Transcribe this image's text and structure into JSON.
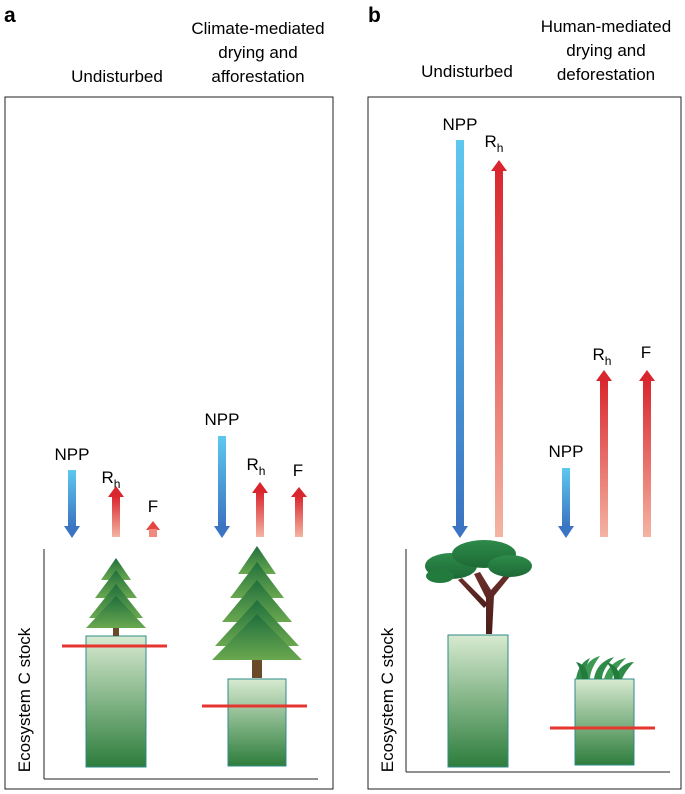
{
  "panels": [
    {
      "id": "a",
      "letter": "a",
      "columns": [
        {
          "label_lines": [
            "Undisturbed"
          ]
        },
        {
          "label_lines": [
            "Climate-mediated",
            "drying and",
            "afforestation"
          ]
        }
      ],
      "flux_labels": [
        "NPP",
        "R",
        "h",
        "F"
      ],
      "y_axis_label": "Ecosystem C stock"
    },
    {
      "id": "b",
      "letter": "b",
      "columns": [
        {
          "label_lines": [
            "Undisturbed"
          ]
        },
        {
          "label_lines": [
            "Human-mediated",
            "drying and",
            "deforestation"
          ]
        }
      ],
      "flux_labels": [
        "NPP",
        "R",
        "h",
        "F"
      ],
      "y_axis_label": "Ecosystem C stock"
    }
  ],
  "colors": {
    "npp_top": "#5ec8ef",
    "npp_bottom": "#3b74c2",
    "rh_top": "#d9262e",
    "rh_bottom": "#f4b4a2",
    "stock_top": "#d7ead0",
    "stock_bottom": "#2d7d3c",
    "threshold_line": "#e6342f",
    "frame": "#231f20"
  }
}
